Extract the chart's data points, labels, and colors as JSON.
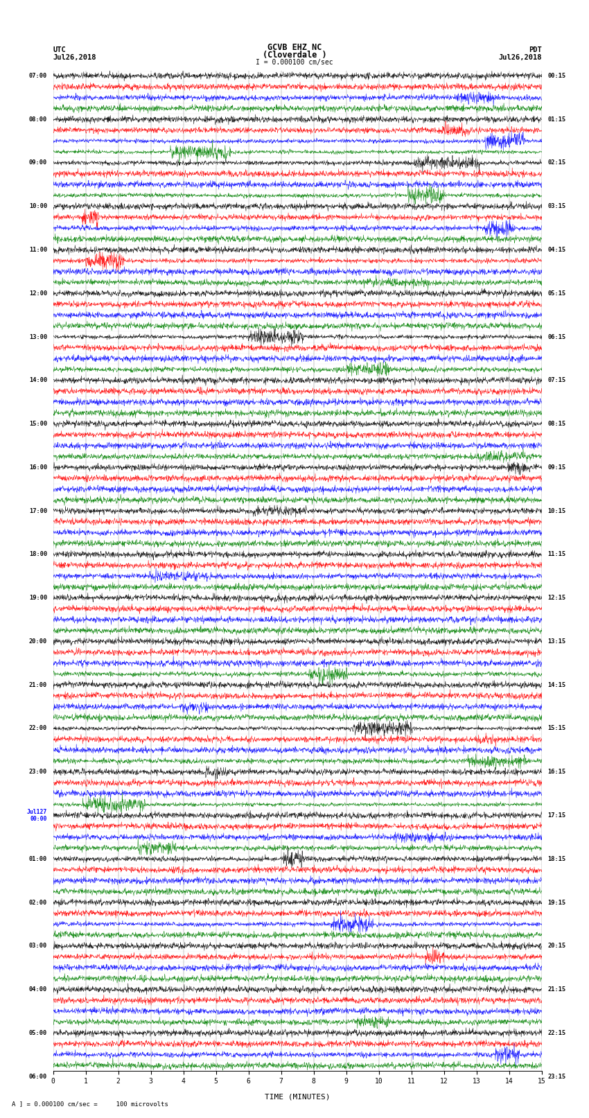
{
  "title_line1": "GCVB EHZ NC",
  "title_line2": "(Cloverdale )",
  "title_scale": "I = 0.000100 cm/sec",
  "left_header_line1": "UTC",
  "left_header_line2": "Jul26,2018",
  "right_header_line1": "PDT",
  "right_header_line2": "Jul26,2018",
  "xlabel": "TIME (MINUTES)",
  "footnote": "A ] = 0.000100 cm/sec =     100 microvolts",
  "xlim": [
    0,
    15
  ],
  "xticks": [
    0,
    1,
    2,
    3,
    4,
    5,
    6,
    7,
    8,
    9,
    10,
    11,
    12,
    13,
    14,
    15
  ],
  "left_times": [
    "07:00",
    "",
    "",
    "",
    "08:00",
    "",
    "",
    "",
    "09:00",
    "",
    "",
    "",
    "10:00",
    "",
    "",
    "",
    "11:00",
    "",
    "",
    "",
    "12:00",
    "",
    "",
    "",
    "13:00",
    "",
    "",
    "",
    "14:00",
    "",
    "",
    "",
    "15:00",
    "",
    "",
    "",
    "16:00",
    "",
    "",
    "",
    "17:00",
    "",
    "",
    "",
    "18:00",
    "",
    "",
    "",
    "19:00",
    "",
    "",
    "",
    "20:00",
    "",
    "",
    "",
    "21:00",
    "",
    "",
    "",
    "22:00",
    "",
    "",
    "",
    "23:00",
    "",
    "",
    "",
    "Jul127\n00:00",
    "",
    "",
    "",
    "01:00",
    "",
    "",
    "",
    "02:00",
    "",
    "",
    "",
    "03:00",
    "",
    "",
    "",
    "04:00",
    "",
    "",
    "",
    "05:00",
    "",
    "",
    "",
    "06:00",
    "",
    "",
    ""
  ],
  "right_times": [
    "00:15",
    "",
    "",
    "",
    "01:15",
    "",
    "",
    "",
    "02:15",
    "",
    "",
    "",
    "03:15",
    "",
    "",
    "",
    "04:15",
    "",
    "",
    "",
    "05:15",
    "",
    "",
    "",
    "06:15",
    "",
    "",
    "",
    "07:15",
    "",
    "",
    "",
    "08:15",
    "",
    "",
    "",
    "09:15",
    "",
    "",
    "",
    "10:15",
    "",
    "",
    "",
    "11:15",
    "",
    "",
    "",
    "12:15",
    "",
    "",
    "",
    "13:15",
    "",
    "",
    "",
    "14:15",
    "",
    "",
    "",
    "15:15",
    "",
    "",
    "",
    "16:15",
    "",
    "",
    "",
    "17:15",
    "",
    "",
    "",
    "18:15",
    "",
    "",
    "",
    "19:15",
    "",
    "",
    "",
    "20:15",
    "",
    "",
    "",
    "21:15",
    "",
    "",
    "",
    "22:15",
    "",
    "",
    "",
    "23:15",
    "",
    "",
    ""
  ],
  "num_rows": 92,
  "row_colors": [
    "black",
    "red",
    "blue",
    "green"
  ],
  "bg_color": "white",
  "trace_amplitude": 0.35,
  "noise_amplitude": 0.15,
  "seed": 42
}
